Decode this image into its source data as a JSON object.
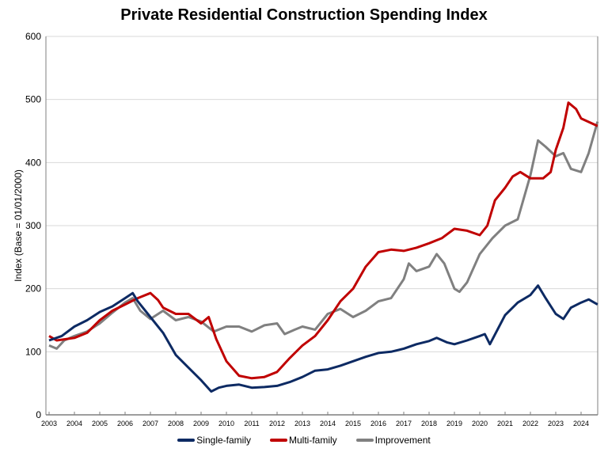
{
  "chart_data": {
    "type": "line",
    "title": "Private Residential Construction Spending Index",
    "xlabel": "",
    "ylabel": "Index  (Base = 01/01/2000)",
    "ylim": [
      0,
      600
    ],
    "xlim": [
      2003,
      2024.7
    ],
    "yticks": [
      "0",
      "100",
      "200",
      "300",
      "400",
      "500",
      "600"
    ],
    "xticks": [
      "2003",
      "2004",
      "2005",
      "2006",
      "2007",
      "2008",
      "2009",
      "2010",
      "2011",
      "2012",
      "2013",
      "2014",
      "2015",
      "2016",
      "2017",
      "2018",
      "2019",
      "2020",
      "2021",
      "2022",
      "2023",
      "2024"
    ],
    "grid": "horizontal",
    "legend_position": "bottom",
    "series": [
      {
        "name": "Single-family",
        "color": "#0d2a63",
        "x": [
          2003,
          2003.5,
          2004,
          2004.5,
          2005,
          2005.5,
          2006,
          2006.3,
          2006.5,
          2007,
          2007.5,
          2008,
          2008.5,
          2009,
          2009.4,
          2009.7,
          2010,
          2010.5,
          2011,
          2011.5,
          2012,
          2012.5,
          2013,
          2013.5,
          2014,
          2014.5,
          2015,
          2015.5,
          2016,
          2016.5,
          2017,
          2017.5,
          2018,
          2018.3,
          2018.7,
          2019,
          2019.5,
          2020,
          2020.2,
          2020.4,
          2020.7,
          2021,
          2021.5,
          2022,
          2022.3,
          2022.6,
          2023,
          2023.3,
          2023.6,
          2024,
          2024.3,
          2024.65
        ],
        "y": [
          118,
          125,
          140,
          150,
          163,
          172,
          185,
          193,
          180,
          155,
          130,
          95,
          75,
          55,
          37,
          43,
          46,
          48,
          43,
          44,
          46,
          52,
          60,
          70,
          72,
          78,
          85,
          92,
          98,
          100,
          105,
          112,
          117,
          122,
          115,
          112,
          118,
          125,
          128,
          112,
          135,
          158,
          178,
          190,
          205,
          185,
          160,
          152,
          170,
          178,
          183,
          175
        ]
      },
      {
        "name": "Multi-family",
        "color": "#c00000",
        "x": [
          2003,
          2003.3,
          2004,
          2004.5,
          2005,
          2005.5,
          2006,
          2006.5,
          2007,
          2007.3,
          2007.5,
          2008,
          2008.5,
          2009,
          2009.3,
          2009.6,
          2010,
          2010.5,
          2011,
          2011.5,
          2012,
          2012.5,
          2013,
          2013.5,
          2014,
          2014.5,
          2015,
          2015.5,
          2016,
          2016.5,
          2017,
          2017.5,
          2018,
          2018.5,
          2019,
          2019.5,
          2020,
          2020.3,
          2020.6,
          2021,
          2021.3,
          2021.6,
          2022,
          2022.5,
          2022.8,
          2023,
          2023.3,
          2023.5,
          2023.8,
          2024,
          2024.65
        ],
        "y": [
          125,
          118,
          122,
          130,
          150,
          165,
          175,
          185,
          193,
          182,
          170,
          160,
          160,
          145,
          155,
          120,
          85,
          62,
          58,
          60,
          68,
          90,
          110,
          125,
          150,
          180,
          200,
          235,
          258,
          262,
          260,
          265,
          272,
          280,
          295,
          292,
          285,
          300,
          340,
          360,
          378,
          385,
          375,
          375,
          385,
          420,
          455,
          495,
          485,
          470,
          458
        ]
      },
      {
        "name": "Improvement",
        "color": "#808080",
        "x": [
          2003,
          2003.3,
          2003.6,
          2004,
          2004.5,
          2005,
          2005.5,
          2006,
          2006.3,
          2006.6,
          2007,
          2007.5,
          2008,
          2008.5,
          2009,
          2009.5,
          2010,
          2010.5,
          2011,
          2011.5,
          2012,
          2012.3,
          2012.7,
          2013,
          2013.5,
          2014,
          2014.5,
          2015,
          2015.5,
          2016,
          2016.5,
          2017,
          2017.2,
          2017.5,
          2018,
          2018.3,
          2018.6,
          2019,
          2019.2,
          2019.5,
          2020,
          2020.5,
          2021,
          2021.5,
          2022,
          2022.3,
          2022.6,
          2023,
          2023.3,
          2023.6,
          2024,
          2024.3,
          2024.65
        ],
        "y": [
          110,
          105,
          118,
          125,
          132,
          145,
          162,
          178,
          185,
          165,
          152,
          165,
          150,
          155,
          148,
          132,
          140,
          140,
          132,
          142,
          145,
          128,
          135,
          140,
          135,
          160,
          168,
          155,
          165,
          180,
          185,
          215,
          240,
          228,
          235,
          255,
          240,
          200,
          195,
          210,
          255,
          280,
          300,
          310,
          380,
          435,
          425,
          410,
          415,
          390,
          385,
          415,
          465
        ]
      }
    ]
  }
}
